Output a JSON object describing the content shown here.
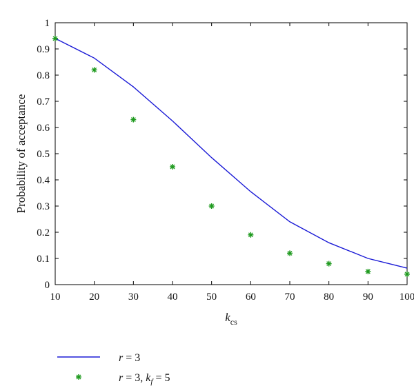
{
  "chart_data": {
    "type": "line",
    "title": "",
    "xlabel": {
      "main": "k",
      "sub": "cs"
    },
    "ylabel": "Probability of acceptance",
    "xlim": [
      10,
      100
    ],
    "ylim": [
      0,
      1
    ],
    "xticks": [
      "10",
      "20",
      "30",
      "40",
      "50",
      "60",
      "70",
      "80",
      "90",
      "100"
    ],
    "yticks": [
      "0",
      "0.1",
      "0.2",
      "0.3",
      "0.4",
      "0.5",
      "0.6",
      "0.7",
      "0.8",
      "0.9",
      "1"
    ],
    "grid": false,
    "legend_position": "below",
    "series": [
      {
        "name": "r = 3",
        "name_parts": {
          "var": "r",
          "rest": " = 3"
        },
        "style": "line",
        "color": "#1a1ad6",
        "x": [
          10,
          20,
          30,
          40,
          50,
          60,
          70,
          80,
          90,
          100
        ],
        "values": [
          0.94,
          0.865,
          0.755,
          0.625,
          0.485,
          0.355,
          0.24,
          0.16,
          0.1,
          0.063
        ]
      },
      {
        "name": "r = 3, k_f = 5",
        "name_parts": {
          "var1": "r",
          "mid": " = 3, ",
          "var2": "k",
          "sub": "f",
          "rest": " = 5"
        },
        "style": "markers",
        "marker": "star",
        "color": "#1f9a1f",
        "x": [
          10,
          20,
          30,
          40,
          50,
          60,
          70,
          80,
          90,
          100
        ],
        "values": [
          0.94,
          0.82,
          0.63,
          0.45,
          0.3,
          0.19,
          0.12,
          0.08,
          0.05,
          0.04
        ]
      }
    ]
  }
}
